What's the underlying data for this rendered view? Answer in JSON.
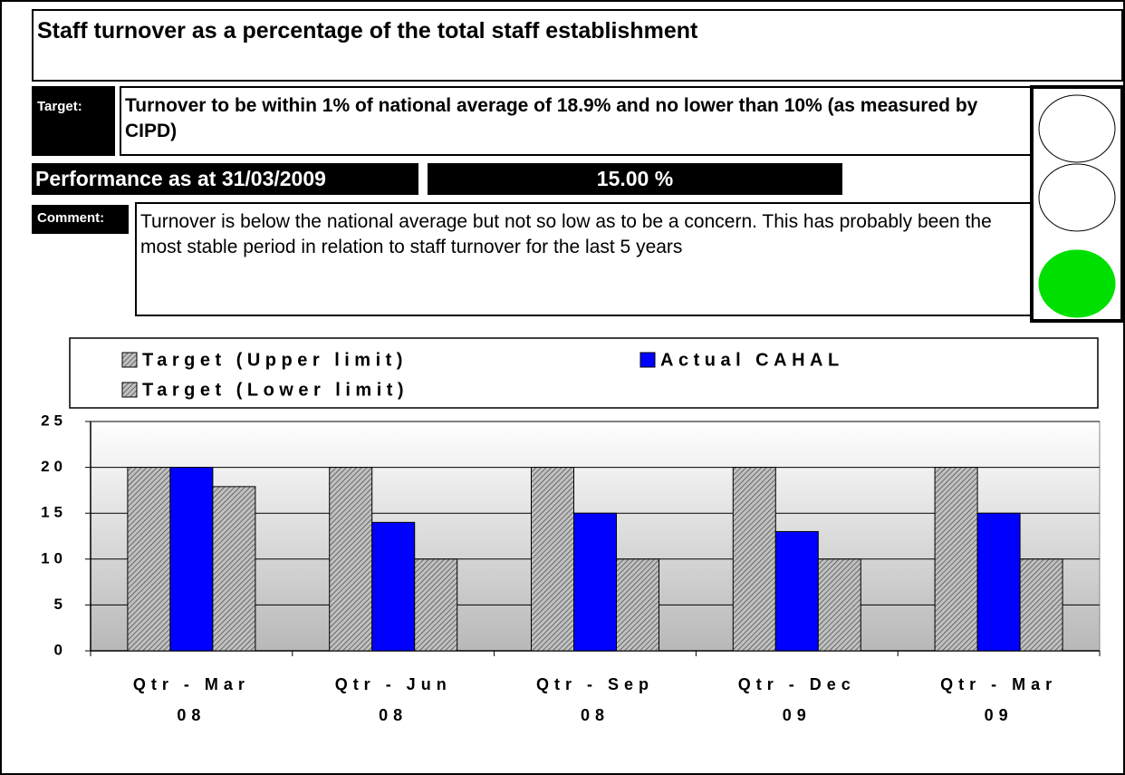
{
  "header": {
    "title": "Staff turnover as a percentage of the total staff establishment"
  },
  "target": {
    "label": "Target:",
    "text": "Turnover to be within 1% of national average of 18.9% and no lower than 10% (as measured by CIPD)"
  },
  "performance": {
    "label": "Performance as at 31/03/2009",
    "value": "15.00 %"
  },
  "comment": {
    "label": "Comment:",
    "text": "Turnover is below the national average but not so low as to be a concern.  This has probably been the most stable period in relation to staff turnover for the last 5 years"
  },
  "chart_data": {
    "type": "bar",
    "categories": [
      "Qtr - Mar 08",
      "Qtr - Jun 08",
      "Qtr - Sep 08",
      "Qtr - Dec 09",
      "Qtr - Mar 09"
    ],
    "series": [
      {
        "name": "Target (Upper limit)",
        "color": "#c0c0c0",
        "hatch": true,
        "values": [
          20,
          20,
          20,
          20,
          20
        ]
      },
      {
        "name": "Actual CAHAL",
        "color": "#0000ff",
        "hatch": false,
        "values": [
          20,
          14,
          15,
          13,
          15
        ]
      },
      {
        "name": "Target (Lower limit)",
        "color": "#c0c0c0",
        "hatch": true,
        "values": [
          17.9,
          10,
          10,
          10,
          10
        ]
      }
    ],
    "ylim": [
      0,
      25
    ],
    "yticks": [
      0,
      5,
      10,
      15,
      20,
      25
    ],
    "grid": true
  }
}
